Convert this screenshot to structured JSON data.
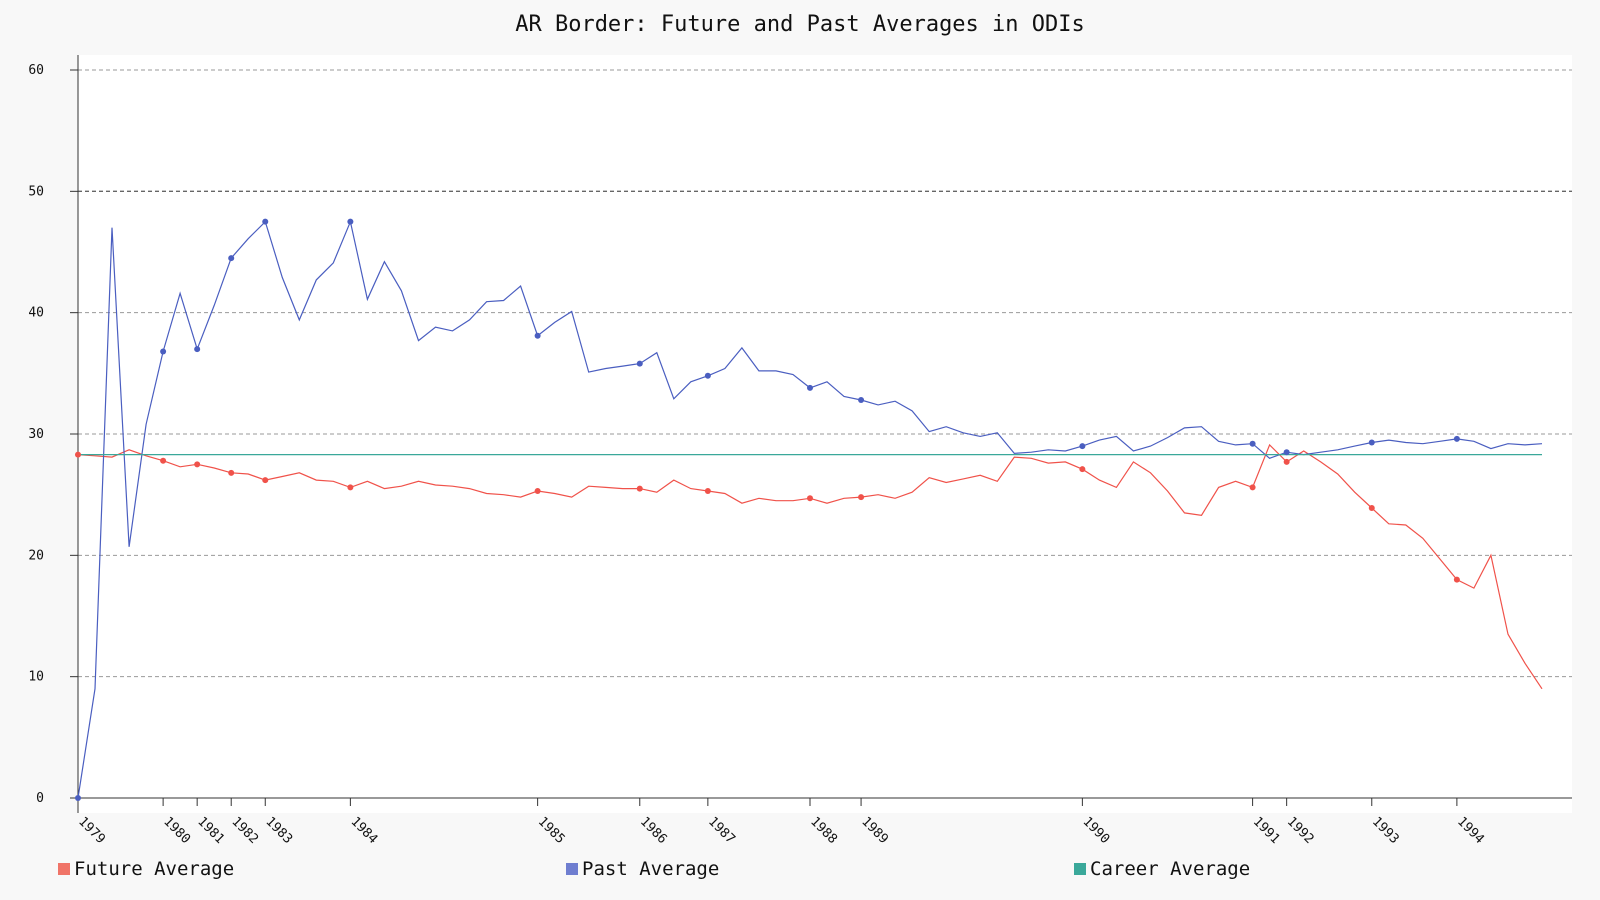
{
  "chart_data": {
    "type": "line",
    "title": "AR Border: Future and Past Averages in ODIs",
    "xlabel": "",
    "ylabel": "",
    "ylim": [
      0,
      60
    ],
    "yticks": [
      0,
      10,
      20,
      30,
      40,
      50,
      60
    ],
    "grid": true,
    "legend_position": "bottom",
    "x_index_range": [
      1,
      87
    ],
    "year_ticks": [
      {
        "index": 1,
        "label": "1979"
      },
      {
        "index": 6,
        "label": "1980"
      },
      {
        "index": 8,
        "label": "1981"
      },
      {
        "index": 10,
        "label": "1982"
      },
      {
        "index": 12,
        "label": "1983"
      },
      {
        "index": 17,
        "label": "1984"
      },
      {
        "index": 28,
        "label": "1985"
      },
      {
        "index": 34,
        "label": "1986"
      },
      {
        "index": 38,
        "label": "1987"
      },
      {
        "index": 44,
        "label": "1988"
      },
      {
        "index": 47,
        "label": "1989"
      },
      {
        "index": 60,
        "label": "1990"
      },
      {
        "index": 70,
        "label": "1991"
      },
      {
        "index": 72,
        "label": "1992"
      },
      {
        "index": 77,
        "label": "1993"
      },
      {
        "index": 82,
        "label": "1994"
      }
    ],
    "series": [
      {
        "name": "Future Average",
        "color": "#f0524a",
        "values": [
          28.3,
          28.2,
          28.1,
          28.7,
          28.2,
          27.8,
          27.3,
          27.5,
          27.2,
          26.8,
          26.7,
          26.2,
          26.5,
          26.8,
          26.2,
          26.1,
          25.6,
          26.1,
          25.5,
          25.7,
          26.1,
          25.8,
          25.7,
          25.5,
          25.1,
          25.0,
          24.8,
          25.3,
          25.1,
          24.8,
          25.7,
          25.6,
          25.5,
          25.5,
          25.2,
          26.2,
          25.5,
          25.3,
          25.1,
          24.3,
          24.7,
          24.5,
          24.5,
          24.7,
          24.3,
          24.7,
          24.8,
          25.0,
          24.7,
          25.2,
          26.4,
          26.0,
          26.3,
          26.6,
          26.1,
          28.1,
          28.0,
          27.6,
          27.7,
          27.1,
          26.2,
          25.6,
          27.7,
          26.8,
          25.3,
          23.5,
          23.3,
          25.6,
          26.1,
          25.6,
          29.1,
          27.7,
          28.6,
          27.7,
          26.7,
          25.2,
          23.9,
          22.6,
          22.5,
          21.4,
          19.7,
          18.0,
          17.3,
          20.0,
          13.5,
          11.1,
          9.0
        ],
        "marker_indices": [
          1,
          6,
          8,
          10,
          12,
          17,
          28,
          34,
          38,
          44,
          47,
          60,
          70,
          72,
          77,
          82
        ]
      },
      {
        "name": "Past Average",
        "color": "#4a5ec0",
        "values": [
          0.0,
          9.0,
          47.0,
          20.7,
          30.8,
          36.8,
          41.6,
          37.0,
          40.6,
          44.5,
          46.1,
          47.5,
          42.9,
          39.4,
          42.7,
          44.1,
          47.5,
          41.1,
          44.2,
          41.8,
          37.7,
          38.8,
          38.5,
          39.4,
          40.9,
          41.0,
          42.2,
          38.1,
          39.2,
          40.1,
          35.1,
          35.4,
          35.6,
          35.8,
          36.7,
          32.9,
          34.3,
          34.8,
          35.4,
          37.1,
          35.2,
          35.2,
          34.9,
          33.8,
          34.3,
          33.1,
          32.8,
          32.4,
          32.7,
          31.9,
          30.2,
          30.6,
          30.1,
          29.8,
          30.1,
          28.4,
          28.5,
          28.7,
          28.6,
          29.0,
          29.5,
          29.8,
          28.6,
          29.0,
          29.7,
          30.5,
          30.6,
          29.4,
          29.1,
          29.2,
          28.0,
          28.5,
          28.3,
          28.5,
          28.7,
          29.0,
          29.3,
          29.5,
          29.3,
          29.2,
          29.4,
          29.6,
          29.4,
          28.8,
          29.2,
          29.1,
          29.2
        ],
        "marker_indices": [
          1,
          6,
          8,
          10,
          12,
          17,
          28,
          34,
          38,
          44,
          47,
          60,
          70,
          72,
          77,
          82
        ]
      },
      {
        "name": "Career Average",
        "color": "#3aa89a",
        "values": [
          28.3,
          28.3
        ]
      }
    ]
  }
}
